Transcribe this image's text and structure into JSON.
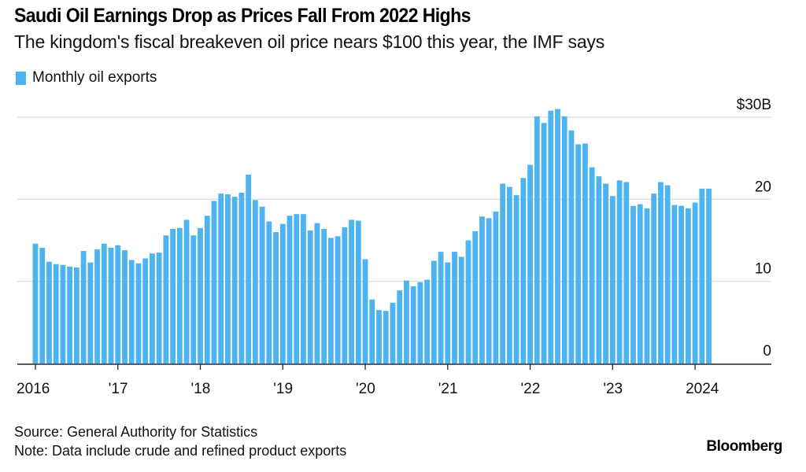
{
  "chart_data": {
    "type": "bar",
    "title": "Saudi Oil Earnings Drop as Prices Fall From 2022 Highs",
    "subtitle": "The kingdom's fiscal breakeven oil price nears $100 this year, the IMF says",
    "legend": [
      {
        "name": "Monthly oil exports",
        "color": "#4DB4F0",
        "placement": "top-left"
      }
    ],
    "xlabel": "",
    "ylabel": "",
    "units": "USD billions",
    "ylim": [
      0,
      30
    ],
    "yticks": [
      {
        "value": 0,
        "label": "0"
      },
      {
        "value": 10,
        "label": "10"
      },
      {
        "value": 20,
        "label": "20"
      },
      {
        "value": 30,
        "label": "$30B"
      }
    ],
    "yaxis_side": "right",
    "grid": true,
    "xticks": [
      {
        "month_index": 0,
        "label": "2016"
      },
      {
        "month_index": 12,
        "label": "'17"
      },
      {
        "month_index": 24,
        "label": "'18"
      },
      {
        "month_index": 36,
        "label": "'19"
      },
      {
        "month_index": 48,
        "label": "'20"
      },
      {
        "month_index": 60,
        "label": "'21"
      },
      {
        "month_index": 72,
        "label": "'22"
      },
      {
        "month_index": 84,
        "label": "'23"
      },
      {
        "month_index": 96,
        "label": "2024"
      }
    ],
    "x_start": "2016-01",
    "x_end": "2024-03",
    "series": [
      {
        "name": "Monthly oil exports",
        "color": "#4DB4F0",
        "values": [
          14.6,
          14.1,
          12.4,
          12.1,
          12.0,
          11.8,
          11.7,
          13.7,
          12.3,
          13.9,
          14.6,
          14.1,
          14.4,
          13.8,
          12.6,
          12.2,
          12.8,
          13.4,
          13.5,
          15.6,
          16.4,
          16.5,
          17.5,
          15.6,
          16.5,
          18.0,
          19.8,
          20.7,
          20.6,
          20.3,
          20.8,
          23.0,
          19.9,
          19.1,
          17.3,
          16.0,
          17.0,
          18.0,
          18.2,
          18.2,
          16.2,
          17.1,
          16.4,
          15.3,
          15.5,
          16.6,
          17.5,
          17.4,
          12.7,
          7.8,
          6.5,
          6.4,
          7.4,
          8.9,
          10.1,
          9.4,
          9.9,
          10.2,
          12.5,
          13.6,
          12.3,
          13.6,
          13.0,
          15.0,
          16.1,
          17.9,
          17.7,
          18.5,
          21.9,
          21.5,
          20.5,
          22.6,
          24.2,
          30.1,
          29.3,
          30.8,
          31.0,
          30.1,
          28.4,
          26.7,
          26.8,
          23.9,
          22.8,
          21.9,
          20.4,
          22.3,
          22.1,
          19.2,
          19.4,
          18.9,
          20.7,
          22.1,
          21.7,
          19.3,
          19.2,
          18.9,
          19.6,
          21.3,
          21.3
        ]
      }
    ]
  },
  "footer": {
    "source": "Source: General Authority for Statistics",
    "note": "Note: Data include crude and refined product exports",
    "brand": "Bloomberg"
  }
}
